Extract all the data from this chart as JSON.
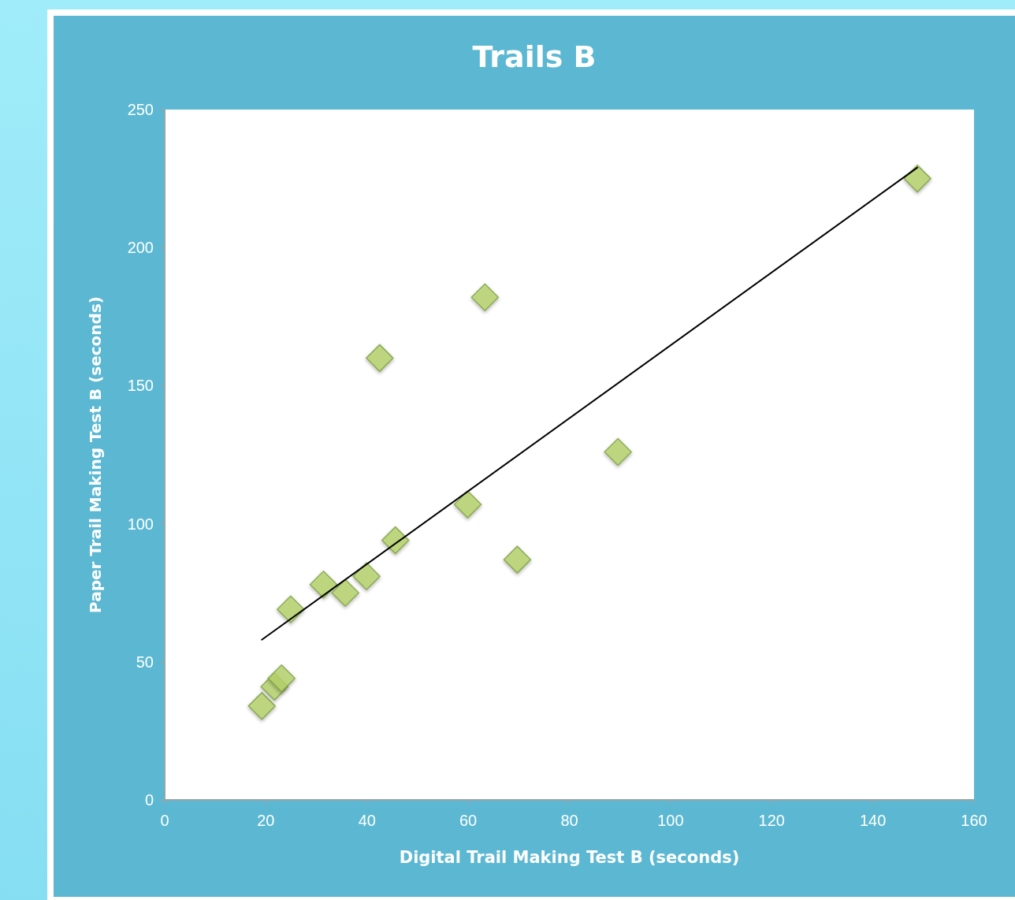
{
  "chart_data": {
    "type": "scatter",
    "title": "Trails B",
    "xlabel": "Digital Trail Making Test B (seconds)",
    "ylabel": "Paper Trail Making Test B (seconds)",
    "xlim": [
      0,
      160
    ],
    "xticks": [
      0,
      20,
      40,
      60,
      80,
      100,
      120,
      140,
      160
    ],
    "ylim": [
      0,
      250
    ],
    "yticks": [
      0,
      50,
      100,
      150,
      200,
      250
    ],
    "grid": false,
    "marker": "diamond",
    "series": [
      {
        "color": "#b5d56a",
        "x": [
          19.2,
          21.7,
          23.1,
          24.9,
          31.4,
          35.7,
          39.9,
          45.6,
          42.5,
          59.9,
          63.3,
          69.7,
          89.6,
          148.8
        ],
        "values": [
          34,
          41,
          44,
          69,
          78,
          75,
          81,
          94,
          160,
          107,
          182,
          87,
          126,
          225
        ]
      },
      {
        "type": "line",
        "color": "#000000",
        "marker": "none",
        "line_style": "solid",
        "x": [
          19.2,
          148.8
        ],
        "values": [
          58,
          229
        ]
      }
    ]
  }
}
